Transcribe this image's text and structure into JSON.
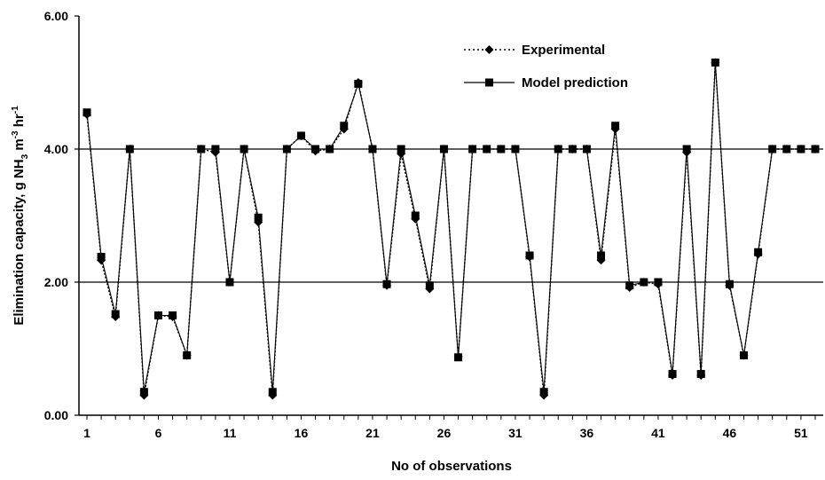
{
  "chart_data": {
    "type": "line",
    "xlabel": "No of observations",
    "ylabel_parts": {
      "base": "Elimination capacity, g NH",
      "sub3": "3",
      "mid": " m",
      "sup_m": "-3",
      "hr": " hr",
      "sup_hr": "-1"
    },
    "ylim": [
      0,
      6
    ],
    "xlim": [
      1,
      52
    ],
    "x_ticks": [
      1,
      6,
      11,
      16,
      21,
      26,
      31,
      36,
      41,
      46,
      51
    ],
    "y_ticks": [
      "0.00",
      "2.00",
      "4.00",
      "6.00"
    ],
    "y_tick_values": [
      0,
      2,
      4,
      6
    ],
    "gridlines_y": [
      2,
      4
    ],
    "legend_position": "top-right",
    "x": [
      1,
      2,
      3,
      4,
      5,
      6,
      7,
      8,
      9,
      10,
      11,
      12,
      13,
      14,
      15,
      16,
      17,
      18,
      19,
      20,
      21,
      22,
      23,
      24,
      25,
      26,
      27,
      28,
      29,
      30,
      31,
      32,
      33,
      34,
      35,
      36,
      37,
      38,
      39,
      40,
      41,
      42,
      43,
      44,
      45,
      46,
      47,
      48,
      49,
      50,
      51,
      52
    ],
    "series": [
      {
        "name": "Experimental",
        "marker": "diamond",
        "line": "dotted",
        "values": [
          4.52,
          2.33,
          1.48,
          4.0,
          0.3,
          1.5,
          1.48,
          0.9,
          4.0,
          3.95,
          2.0,
          4.0,
          2.9,
          0.3,
          4.0,
          4.2,
          3.97,
          4.0,
          4.3,
          5.0,
          4.0,
          1.95,
          3.93,
          2.95,
          1.9,
          4.0,
          0.88,
          4.0,
          4.0,
          4.0,
          4.0,
          2.38,
          0.3,
          4.0,
          4.0,
          4.0,
          2.33,
          4.3,
          1.92,
          2.0,
          1.97,
          0.6,
          3.95,
          0.6,
          5.3,
          1.95,
          0.9,
          2.42,
          4.0,
          4.0,
          4.0,
          4.0
        ]
      },
      {
        "name": "Model prediction",
        "marker": "square",
        "line": "solid",
        "values": [
          4.55,
          2.38,
          1.52,
          4.0,
          0.35,
          1.5,
          1.5,
          0.9,
          4.0,
          4.0,
          2.0,
          4.0,
          2.97,
          0.35,
          4.0,
          4.2,
          4.0,
          4.0,
          4.35,
          4.98,
          4.0,
          1.97,
          4.0,
          3.0,
          1.95,
          4.0,
          0.87,
          4.0,
          4.0,
          4.0,
          4.0,
          2.4,
          0.35,
          4.0,
          4.0,
          4.0,
          2.4,
          4.35,
          1.95,
          2.0,
          2.0,
          0.62,
          4.0,
          0.62,
          5.3,
          1.97,
          0.9,
          2.45,
          4.0,
          4.0,
          4.0,
          4.0
        ]
      }
    ]
  }
}
